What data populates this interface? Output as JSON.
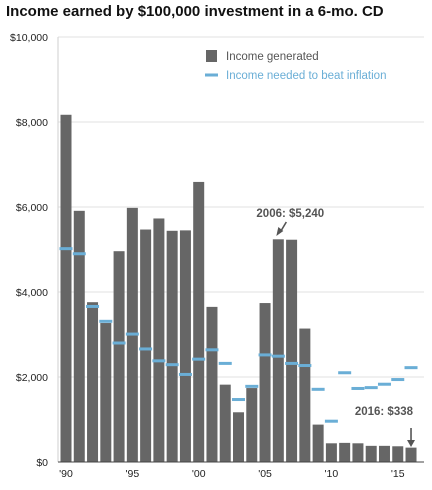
{
  "chart_data": {
    "type": "bar",
    "title": "Income earned by $100,000 investment in a 6-mo. CD",
    "xlabel": "",
    "ylabel": "",
    "ylim": [
      0,
      10000
    ],
    "yticks": [
      0,
      2000,
      4000,
      6000,
      8000,
      10000
    ],
    "ytick_labels": [
      "$0",
      "$2,000",
      "$4,000",
      "$6,000",
      "$8,000",
      "$10,000"
    ],
    "x_tick_labels": [
      {
        "year": 1990,
        "label": "'90"
      },
      {
        "year": 1995,
        "label": "'95"
      },
      {
        "year": 2000,
        "label": "'00"
      },
      {
        "year": 2005,
        "label": "'05"
      },
      {
        "year": 2010,
        "label": "'10"
      },
      {
        "year": 2015,
        "label": "'15"
      }
    ],
    "grid": true,
    "legend_position": "top-right",
    "colors": {
      "income": "#666666",
      "inflation": "#6aaed6",
      "annotation": "#555555"
    },
    "x": [
      1990,
      1991,
      1992,
      1993,
      1994,
      1995,
      1996,
      1997,
      1998,
      1999,
      2000,
      2001,
      2002,
      2003,
      2004,
      2005,
      2006,
      2007,
      2008,
      2009,
      2010,
      2011,
      2012,
      2013,
      2014,
      2015,
      2016
    ],
    "series": [
      {
        "name": "Income generated",
        "kind": "bar",
        "values": [
          8170,
          5910,
          3760,
          3270,
          4960,
          5980,
          5470,
          5730,
          5440,
          5450,
          6590,
          3650,
          1820,
          1170,
          1740,
          3740,
          5240,
          5230,
          3140,
          880,
          440,
          450,
          440,
          380,
          380,
          370,
          338
        ]
      },
      {
        "name": "Income needed to beat inflation",
        "kind": "dash",
        "values": [
          5020,
          4900,
          3660,
          3310,
          2800,
          3010,
          2660,
          2380,
          2290,
          2060,
          2420,
          2640,
          2320,
          1470,
          1780,
          2520,
          2490,
          2320,
          2270,
          1710,
          960,
          2100,
          1730,
          1750,
          1830,
          1940,
          2220
        ]
      }
    ],
    "annotations": [
      {
        "text": "2006: $5,240",
        "year": 2006,
        "value": 5240
      },
      {
        "text": "2016: $338",
        "year": 2016,
        "value": 338
      }
    ]
  }
}
